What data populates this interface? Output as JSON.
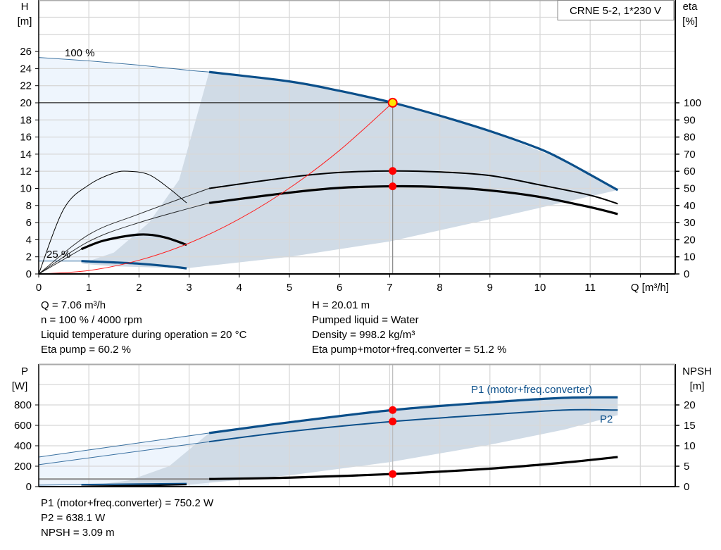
{
  "chart_data": [
    {
      "type": "line",
      "title": "CRNE 5-2, 1*230 V",
      "xlabel": "Q [m³/h]",
      "ylabel": [
        "H",
        "[m]"
      ],
      "y2label": [
        "eta",
        "[%]"
      ],
      "xlim": [
        0,
        12.7
      ],
      "ylim": [
        0,
        32
      ],
      "y2lim": [
        0,
        160
      ],
      "xticks": [
        0,
        1,
        2,
        3,
        4,
        5,
        6,
        7,
        8,
        9,
        10,
        11
      ],
      "yticks": [
        0,
        2,
        4,
        6,
        8,
        10,
        12,
        14,
        16,
        18,
        20,
        22,
        24,
        26
      ],
      "y2ticks": [
        0,
        10,
        20,
        30,
        40,
        50,
        60,
        70,
        80,
        90,
        100
      ],
      "grid": true,
      "annotations": [
        {
          "text": "100 %"
        },
        {
          "text": "25 %"
        }
      ],
      "series": [
        {
          "id": "head-100",
          "axis": "left",
          "color": "#0b4f8a",
          "points": [
            [
              0,
              25.3
            ],
            [
              1,
              24.9
            ],
            [
              2,
              24.4
            ],
            [
              3,
              23.8
            ],
            [
              3.4,
              23.6
            ],
            [
              5,
              22.5
            ],
            [
              6,
              21.4
            ],
            [
              7.06,
              20.01
            ],
            [
              8,
              18.5
            ],
            [
              9,
              16.7
            ],
            [
              10,
              14.6
            ],
            [
              10.5,
              13.2
            ],
            [
              11,
              11.6
            ],
            [
              11.55,
              9.8
            ]
          ]
        },
        {
          "id": "head-25",
          "axis": "left",
          "color": "#0b4f8a",
          "points": [
            [
              0,
              1.5
            ],
            [
              0.85,
              1.5
            ],
            [
              1.5,
              1.35
            ],
            [
              2,
              1.2
            ],
            [
              2.5,
              0.95
            ],
            [
              2.95,
              0.65
            ]
          ]
        },
        {
          "id": "eta-pump-100",
          "axis": "right",
          "color": "#000000",
          "points": [
            [
              0,
              0
            ],
            [
              1,
              23
            ],
            [
              2,
              35
            ],
            [
              3.4,
              50
            ],
            [
              5,
              56.5
            ],
            [
              6,
              59.3
            ],
            [
              7.06,
              60.2
            ],
            [
              8,
              59.6
            ],
            [
              9,
              57.5
            ],
            [
              10,
              52
            ],
            [
              11,
              46
            ],
            [
              11.55,
              41
            ]
          ]
        },
        {
          "id": "eta-total-100",
          "axis": "right",
          "color": "#000000",
          "points": [
            [
              0,
              0
            ],
            [
              1,
              19
            ],
            [
              2,
              30
            ],
            [
              3.4,
              41.5
            ],
            [
              5,
              47.5
            ],
            [
              6,
              50.3
            ],
            [
              7.06,
              51.2
            ],
            [
              8,
              50.8
            ],
            [
              9,
              48.8
            ],
            [
              10,
              45
            ],
            [
              11,
              39
            ],
            [
              11.55,
              35
            ]
          ]
        },
        {
          "id": "eta-pump-25",
          "axis": "right",
          "color": "#000000",
          "points": [
            [
              0,
              0
            ],
            [
              0.5,
              38
            ],
            [
              1,
              52
            ],
            [
              1.5,
              59
            ],
            [
              1.8,
              60
            ],
            [
              2.2,
              58
            ],
            [
              2.6,
              50
            ],
            [
              2.95,
              41.5
            ]
          ]
        },
        {
          "id": "eta-total-25",
          "axis": "right",
          "color": "#000000",
          "points": [
            [
              0,
              0
            ],
            [
              0.85,
              14.5
            ],
            [
              1.3,
              19.5
            ],
            [
              2,
              23
            ],
            [
              2.5,
              21.5
            ],
            [
              2.95,
              17
            ]
          ]
        },
        {
          "id": "system-curve",
          "axis": "left",
          "color": "#ff2020",
          "points": [
            [
              0,
              0
            ],
            [
              1,
              0.4
            ],
            [
              2,
              1.6
            ],
            [
              3,
              3.6
            ],
            [
              4,
              6.42
            ],
            [
              5,
              10.03
            ],
            [
              6,
              14.44
            ],
            [
              7.06,
              20.01
            ]
          ]
        }
      ],
      "operating_point": {
        "Q": 7.06,
        "H": 20.01,
        "eta_pump": 60.2,
        "eta_total": 51.2
      },
      "regions": [
        {
          "id": "range-light",
          "color": "#eef5fd",
          "points": [
            [
              0,
              25.3
            ],
            [
              3.4,
              23.6
            ],
            [
              2.95,
              0.65
            ],
            [
              0.85,
              1.5
            ],
            [
              0,
              1.5
            ]
          ]
        },
        {
          "id": "range-dark",
          "color": "#d0dbe6",
          "points": [
            [
              0.85,
              1.2
            ],
            [
              1.5,
              2.5
            ],
            [
              2.2,
              6
            ],
            [
              2.8,
              11
            ],
            [
              3.4,
              23.6
            ],
            [
              5,
              22.5
            ],
            [
              7.06,
              20.01
            ],
            [
              9,
              16.7
            ],
            [
              10.5,
              13.2
            ],
            [
              11.55,
              9.8
            ],
            [
              9,
              6.4
            ],
            [
              7,
              3.8
            ],
            [
              5,
              2
            ],
            [
              3,
              0.7
            ],
            [
              2.95,
              0.65
            ],
            [
              1.5,
              0.9
            ]
          ]
        }
      ]
    },
    {
      "type": "line",
      "xlabel": "",
      "ylabel": [
        "P",
        "[W]"
      ],
      "y2label": [
        "NPSH",
        "[m]"
      ],
      "xlim": [
        0,
        12.7
      ],
      "ylim": [
        0,
        1200
      ],
      "y2lim": [
        0,
        30
      ],
      "yticks": [
        0,
        200,
        400,
        600,
        800
      ],
      "y2ticks": [
        0,
        5,
        10,
        15,
        20
      ],
      "grid": true,
      "series": [
        {
          "id": "p1",
          "name": "P1 (motor+freq.converter)",
          "axis": "left",
          "color": "#0b4f8a",
          "points": [
            [
              0,
              290
            ],
            [
              3.4,
              525
            ],
            [
              5,
              630
            ],
            [
              7.06,
              750.2
            ],
            [
              9,
              825
            ],
            [
              10.5,
              870
            ],
            [
              11.55,
              875
            ]
          ]
        },
        {
          "id": "p2",
          "name": "P2",
          "axis": "left",
          "color": "#0b4f8a",
          "points": [
            [
              0,
              215
            ],
            [
              3.4,
              440
            ],
            [
              5,
              540
            ],
            [
              7.06,
              638.1
            ],
            [
              9,
              705
            ],
            [
              10.5,
              750
            ],
            [
              11.55,
              750
            ]
          ]
        },
        {
          "id": "npsh",
          "axis": "right",
          "color": "#000000",
          "points": [
            [
              3.4,
              1.85
            ],
            [
              5,
              2.2
            ],
            [
              7.06,
              3.09
            ],
            [
              9,
              4.4
            ],
            [
              10.5,
              5.9
            ],
            [
              11.55,
              7.25
            ]
          ]
        },
        {
          "id": "npsh-low",
          "axis": "right",
          "color": "#888888",
          "points": [
            [
              0,
              1.85
            ],
            [
              3.4,
              1.85
            ]
          ]
        },
        {
          "id": "p1-25",
          "axis": "left",
          "color": "#0b4f8a",
          "points": [
            [
              0,
              15
            ],
            [
              0.85,
              20
            ],
            [
              2.95,
              30
            ]
          ]
        },
        {
          "id": "p2-25",
          "axis": "left",
          "color": "#000000",
          "points": [
            [
              0.85,
              3
            ],
            [
              2,
              10
            ],
            [
              2.95,
              20
            ]
          ]
        }
      ],
      "operating_point": {
        "Q": 7.06,
        "P1": 750.2,
        "P2": 638.1,
        "NPSH": 3.09
      },
      "regions": [
        {
          "id": "range-light",
          "color": "#eef5fd",
          "points": [
            [
              0,
              290
            ],
            [
              3.4,
              525
            ],
            [
              3.4,
              0
            ],
            [
              0,
              0
            ]
          ]
        },
        {
          "id": "range-dark",
          "color": "#d0dbe6",
          "points": [
            [
              0.85,
              0
            ],
            [
              1.8,
              60
            ],
            [
              2.6,
              200
            ],
            [
              3.4,
              525
            ],
            [
              5,
              630
            ],
            [
              7.06,
              750.2
            ],
            [
              9,
              825
            ],
            [
              10.5,
              870
            ],
            [
              11.55,
              875
            ],
            [
              11.55,
              700
            ],
            [
              10.5,
              560
            ],
            [
              9,
              410
            ],
            [
              7,
              240
            ],
            [
              5,
              110
            ],
            [
              3,
              20
            ]
          ]
        }
      ]
    }
  ],
  "info_top": {
    "left": [
      "Q = 7.06 m³/h",
      "n = 100 % / 4000 rpm",
      "Liquid temperature during operation = 20 °C",
      "Eta pump = 60.2 %"
    ],
    "right": [
      "H = 20.01 m",
      "Pumped liquid = Water",
      "Density = 998.2 kg/m³",
      "Eta pump+motor+freq.converter = 51.2 %"
    ]
  },
  "info_bottom": [
    "P1 (motor+freq.converter) = 750.2 W",
    "P2 = 638.1 W",
    "NPSH = 3.09 m"
  ],
  "colors": {
    "curve_blue": "#0b4f8a",
    "marker_red": "#ff0000",
    "marker_yellow": "#ffe600",
    "grid": "#d8d8d8"
  }
}
